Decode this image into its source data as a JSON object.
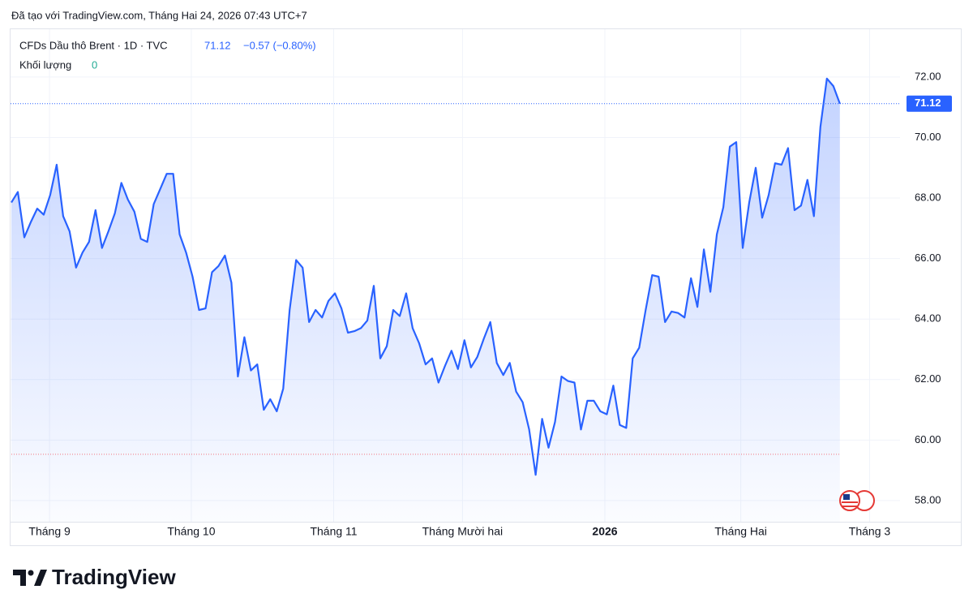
{
  "header": {
    "created": "Đã tạo với TradingView.com, Tháng Hai 24, 2026 07:43 UTC+7",
    "brand": "TradingView"
  },
  "chart_data": {
    "type": "line",
    "symbol": "CFDs Dầu thô Brent · 1D · TVC",
    "change": "−0.57 (−0.80%)",
    "volume_label": "Khối lượng",
    "volume_value": 0,
    "color": "#2962ff",
    "values": [
      67.85,
      68.2,
      66.7,
      67.2,
      67.65,
      67.45,
      68.1,
      69.1,
      67.4,
      66.9,
      65.7,
      66.2,
      66.55,
      67.6,
      66.35,
      66.9,
      67.5,
      68.5,
      67.95,
      67.55,
      66.65,
      66.55,
      67.8,
      68.3,
      68.8,
      68.8,
      66.8,
      66.2,
      65.4,
      64.3,
      64.35,
      65.55,
      65.75,
      66.1,
      65.2,
      62.1,
      63.4,
      62.3,
      62.5,
      61.0,
      61.35,
      60.95,
      61.7,
      64.3,
      65.95,
      65.7,
      63.9,
      64.3,
      64.05,
      64.6,
      64.85,
      64.35,
      63.55,
      63.6,
      63.7,
      63.95,
      65.1,
      62.7,
      63.1,
      64.3,
      64.1,
      64.85,
      63.7,
      63.2,
      62.5,
      62.7,
      61.9,
      62.45,
      62.95,
      62.35,
      63.3,
      62.4,
      62.75,
      63.35,
      63.9,
      62.55,
      62.15,
      62.55,
      61.6,
      61.25,
      60.35,
      58.85,
      60.7,
      59.75,
      60.6,
      62.1,
      61.95,
      61.9,
      60.35,
      61.3,
      61.3,
      60.95,
      60.85,
      61.8,
      60.5,
      60.4,
      62.7,
      63.05,
      64.3,
      65.45,
      65.4,
      63.9,
      64.25,
      64.2,
      64.05,
      65.35,
      64.4,
      66.3,
      64.9,
      66.8,
      67.7,
      69.7,
      69.85,
      66.35,
      67.85,
      69.0,
      67.35,
      68.1,
      69.15,
      69.1,
      69.65,
      67.6,
      67.75,
      68.6,
      67.4,
      70.35,
      71.95,
      71.7,
      71.12
    ],
    "reference_line": 59.53,
    "xlim": [
      0,
      137.3
    ],
    "xticks": [
      {
        "value": 5.9,
        "label": "Tháng 9"
      },
      {
        "value": 27.8,
        "label": "Tháng 10"
      },
      {
        "value": 49.8,
        "label": "Tháng 11"
      },
      {
        "value": 69.7,
        "label": "Tháng Mười hai"
      },
      {
        "value": 91.7,
        "label": "2026"
      },
      {
        "value": 112.7,
        "label": "Tháng Hai"
      },
      {
        "value": 132.6,
        "label": "Tháng 3"
      }
    ],
    "ylim": [
      57.3,
      73.58
    ],
    "yticks": [
      {
        "value": 58,
        "label": "58.00"
      },
      {
        "value": 60,
        "label": "60.00"
      },
      {
        "value": 62,
        "label": "62.00"
      },
      {
        "value": 64,
        "label": "64.00"
      },
      {
        "value": 66,
        "label": "66.00"
      },
      {
        "value": 68,
        "label": "68.00"
      },
      {
        "value": 70,
        "label": "70.00"
      },
      {
        "value": 72,
        "label": "72.00"
      }
    ],
    "grid": true
  }
}
